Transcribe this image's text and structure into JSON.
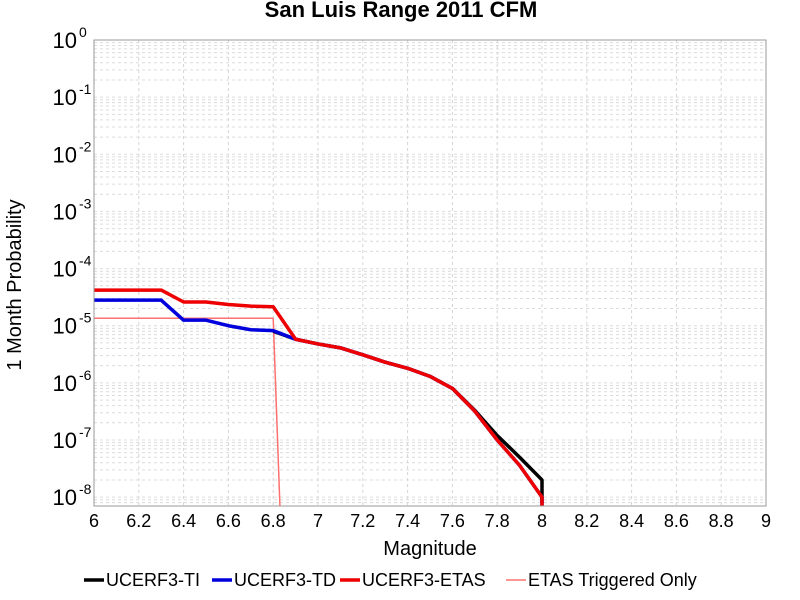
{
  "chart_data": {
    "type": "line",
    "title": "San Luis Range 2011 CFM",
    "xlabel": "Magnitude",
    "ylabel": "1 Month Probability",
    "xlim": [
      6,
      9
    ],
    "ylim": [
      7e-09,
      1
    ],
    "yscale": "log",
    "grid": true,
    "legend_position": "bottom",
    "x_ticks": [
      "6",
      "6.2",
      "6.4",
      "6.6",
      "6.8",
      "7",
      "7.2",
      "7.4",
      "7.6",
      "7.8",
      "8",
      "8.2",
      "8.4",
      "8.6",
      "8.8",
      "9"
    ],
    "y_ticks": [
      {
        "base": "10",
        "exp": "0",
        "value": 1
      },
      {
        "base": "10",
        "exp": "-1",
        "value": 0.1
      },
      {
        "base": "10",
        "exp": "-2",
        "value": 0.01
      },
      {
        "base": "10",
        "exp": "-3",
        "value": 0.001
      },
      {
        "base": "10",
        "exp": "-4",
        "value": 0.0001
      },
      {
        "base": "10",
        "exp": "-5",
        "value": 1e-05
      },
      {
        "base": "10",
        "exp": "-6",
        "value": 1e-06
      },
      {
        "base": "10",
        "exp": "-7",
        "value": 1e-07
      },
      {
        "base": "10",
        "exp": "-8",
        "value": 1e-08
      }
    ],
    "series": [
      {
        "name": "UCERF3-TI",
        "color": "#000000",
        "points": [
          [
            6.8,
            8e-06
          ],
          [
            6.9,
            5.8e-06
          ],
          [
            7.0,
            4.8e-06
          ],
          [
            7.1,
            4.1e-06
          ],
          [
            7.2,
            3.1e-06
          ],
          [
            7.3,
            2.3e-06
          ],
          [
            7.4,
            1.8e-06
          ],
          [
            7.5,
            1.3e-06
          ],
          [
            7.6,
            8e-07
          ],
          [
            7.7,
            3.3e-07
          ],
          [
            7.8,
            1.2e-07
          ],
          [
            7.9,
            5e-08
          ],
          [
            8.0,
            2e-08
          ],
          [
            8.0,
            8e-09
          ]
        ]
      },
      {
        "name": "UCERF3-TD",
        "color": "#0000dd",
        "points": [
          [
            6.0,
            2.8e-05
          ],
          [
            6.1,
            2.8e-05
          ],
          [
            6.2,
            2.8e-05
          ],
          [
            6.3,
            2.8e-05
          ],
          [
            6.4,
            1.25e-05
          ],
          [
            6.5,
            1.25e-05
          ],
          [
            6.6,
            1e-05
          ],
          [
            6.7,
            8.5e-06
          ],
          [
            6.8,
            8.2e-06
          ],
          [
            6.9,
            5.8e-06
          ],
          [
            7.0,
            4.8e-06
          ],
          [
            7.1,
            4.1e-06
          ],
          [
            7.2,
            3.1e-06
          ],
          [
            7.3,
            2.3e-06
          ],
          [
            7.4,
            1.8e-06
          ],
          [
            7.5,
            1.3e-06
          ],
          [
            7.6,
            8e-07
          ],
          [
            7.7,
            3.2e-07
          ],
          [
            7.8,
            1e-07
          ],
          [
            7.9,
            3.6e-08
          ],
          [
            8.0,
            1e-08
          ],
          [
            8.0,
            7e-09
          ]
        ]
      },
      {
        "name": "UCERF3-ETAS",
        "color": "#ee0000",
        "points": [
          [
            6.0,
            4.2e-05
          ],
          [
            6.1,
            4.2e-05
          ],
          [
            6.2,
            4.2e-05
          ],
          [
            6.3,
            4.2e-05
          ],
          [
            6.4,
            2.6e-05
          ],
          [
            6.5,
            2.6e-05
          ],
          [
            6.6,
            2.35e-05
          ],
          [
            6.7,
            2.2e-05
          ],
          [
            6.8,
            2.15e-05
          ],
          [
            6.9,
            5.8e-06
          ],
          [
            7.0,
            4.8e-06
          ],
          [
            7.1,
            4.1e-06
          ],
          [
            7.2,
            3.1e-06
          ],
          [
            7.3,
            2.3e-06
          ],
          [
            7.4,
            1.8e-06
          ],
          [
            7.5,
            1.3e-06
          ],
          [
            7.6,
            8e-07
          ],
          [
            7.7,
            3.2e-07
          ],
          [
            7.8,
            1e-07
          ],
          [
            7.9,
            3.6e-08
          ],
          [
            8.0,
            1e-08
          ],
          [
            8.0,
            7e-09
          ]
        ]
      },
      {
        "name": "ETAS Triggered Only",
        "color": "#ff7070",
        "points": [
          [
            6.0,
            1.35e-05
          ],
          [
            6.8,
            1.35e-05
          ],
          [
            6.83,
            7e-09
          ]
        ]
      }
    ]
  }
}
